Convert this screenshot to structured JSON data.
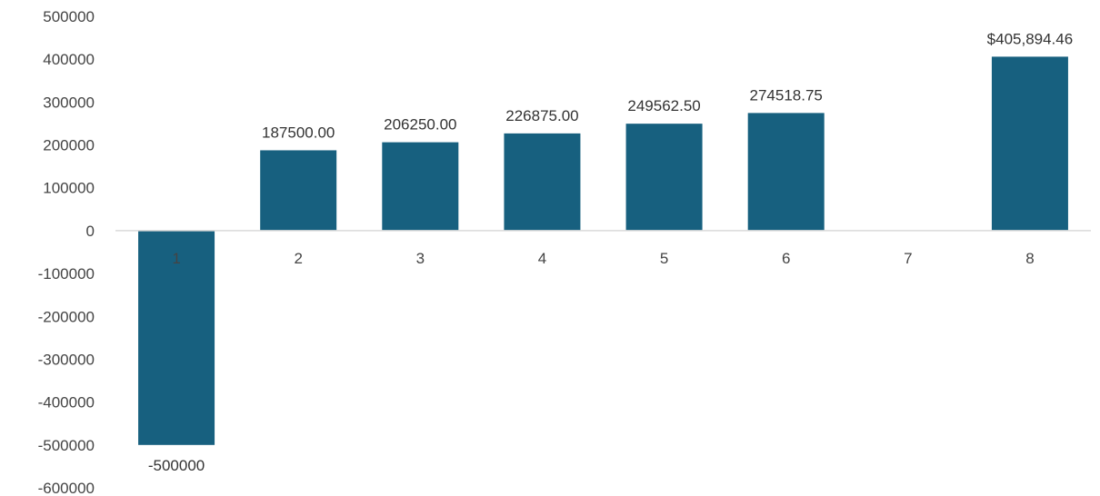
{
  "chart_data": {
    "type": "bar",
    "categories": [
      "1",
      "2",
      "3",
      "4",
      "5",
      "6",
      "7",
      "8"
    ],
    "values": [
      -500000,
      187500.0,
      206250.0,
      226875.0,
      249562.5,
      274518.75,
      null,
      405894.46
    ],
    "data_labels": [
      "-500000",
      "187500.00",
      "206250.00",
      "226875.00",
      "249562.50",
      "274518.75",
      "",
      "$405,894.46"
    ],
    "y_ticks": [
      "500000",
      "400000",
      "300000",
      "200000",
      "100000",
      "0",
      "-100000",
      "-200000",
      "-300000",
      "-400000",
      "-500000",
      "-600000"
    ],
    "ylim": [
      -600000,
      500000
    ],
    "title": "",
    "xlabel": "",
    "ylabel": "",
    "grid": false,
    "bar_color": "#17607F",
    "axis_color": "#D9D9D9"
  }
}
